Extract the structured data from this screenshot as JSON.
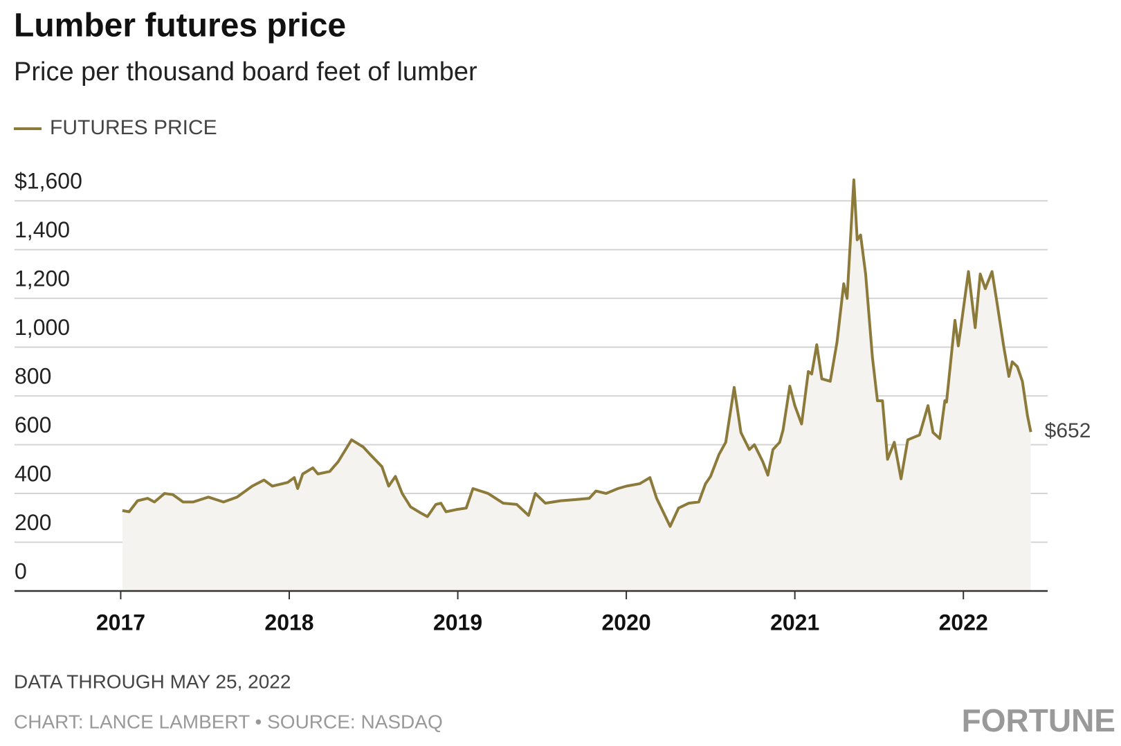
{
  "chart_data": {
    "type": "line",
    "title": "Lumber futures price",
    "subtitle": "Price per thousand board feet of lumber",
    "footnote": "DATA THROUGH MAY 25, 2022",
    "credit": "CHART: LANCE LAMBERT • SOURCE: NASDAQ",
    "logo": "FORTUNE",
    "grid": true,
    "area": true,
    "legend": "top-left",
    "xlim": [
      2016.37,
      2022.5
    ],
    "xticks": [
      2017,
      2018,
      2019,
      2020,
      2021,
      2022
    ],
    "ylim": [
      0,
      1700
    ],
    "yticks": [
      0,
      200,
      400,
      600,
      800,
      {
        "value": 1000,
        "label": "1,000"
      },
      {
        "value": 1200,
        "label": "1,200"
      },
      {
        "value": 1400,
        "label": "1,400"
      },
      {
        "value": 1600,
        "label": "$1,600"
      }
    ],
    "x": [
      2017.01,
      2017.05,
      2017.1,
      2017.16,
      2017.2,
      2017.26,
      2017.31,
      2017.37,
      2017.43,
      2017.52,
      2017.61,
      2017.69,
      2017.78,
      2017.85,
      2017.9,
      2017.99,
      2018.03,
      2018.05,
      2018.08,
      2018.14,
      2018.17,
      2018.24,
      2018.29,
      2018.37,
      2018.44,
      2018.48,
      2018.55,
      2018.59,
      2018.63,
      2018.67,
      2018.72,
      2018.78,
      2018.82,
      2018.87,
      2018.9,
      2018.93,
      2019.0,
      2019.05,
      2019.09,
      2019.18,
      2019.27,
      2019.35,
      2019.42,
      2019.46,
      2019.52,
      2019.61,
      2019.7,
      2019.78,
      2019.82,
      2019.88,
      2019.95,
      2020.0,
      2020.08,
      2020.14,
      2020.18,
      2020.26,
      2020.31,
      2020.37,
      2020.43,
      2020.47,
      2020.5,
      2020.55,
      2020.59,
      2020.64,
      2020.68,
      2020.73,
      2020.76,
      2020.81,
      2020.84,
      2020.87,
      2020.91,
      2020.93,
      2020.97,
      2021.0,
      2021.04,
      2021.08,
      2021.1,
      2021.13,
      2021.16,
      2021.21,
      2021.25,
      2021.29,
      2021.31,
      2021.35,
      2021.37,
      2021.39,
      2021.42,
      2021.46,
      2021.49,
      2021.52,
      2021.55,
      2021.59,
      2021.63,
      2021.67,
      2021.74,
      2021.79,
      2021.82,
      2021.86,
      2021.89,
      2021.9,
      2021.95,
      2021.97,
      2022.03,
      2022.07,
      2022.1,
      2022.13,
      2022.17,
      2022.2,
      2022.24,
      2022.27,
      2022.29,
      2022.32,
      2022.35,
      2022.38,
      2022.4
    ],
    "series": [
      {
        "name": "FUTURES PRICE",
        "color": "#8b7a3a",
        "fill": "#f5f3ef",
        "values": [
          330,
          325,
          370,
          380,
          365,
          400,
          395,
          365,
          365,
          385,
          365,
          385,
          430,
          455,
          430,
          445,
          465,
          420,
          480,
          505,
          480,
          490,
          530,
          620,
          590,
          560,
          510,
          430,
          470,
          400,
          345,
          320,
          305,
          355,
          360,
          325,
          335,
          340,
          420,
          400,
          360,
          355,
          310,
          400,
          360,
          370,
          375,
          380,
          410,
          400,
          420,
          430,
          440,
          465,
          380,
          265,
          340,
          360,
          365,
          440,
          470,
          560,
          610,
          835,
          650,
          580,
          600,
          530,
          475,
          580,
          610,
          660,
          840,
          760,
          685,
          900,
          890,
          1010,
          870,
          860,
          1020,
          1260,
          1200,
          1686,
          1440,
          1460,
          1300,
          960,
          780,
          780,
          540,
          610,
          460,
          620,
          640,
          760,
          650,
          625,
          780,
          775,
          1110,
          1005,
          1310,
          1080,
          1300,
          1240,
          1310,
          1180,
          1000,
          880,
          940,
          920,
          860,
          720,
          652
        ],
        "value_labels": [
          null,
          null,
          null,
          null,
          null,
          null,
          null,
          null,
          null,
          null,
          null,
          null,
          null,
          null,
          null,
          null,
          null,
          null,
          null,
          null,
          null,
          null,
          null,
          null,
          null,
          null,
          null,
          null,
          null,
          null,
          null,
          null,
          null,
          null,
          null,
          null,
          null,
          null,
          null,
          null,
          null,
          null,
          null,
          null,
          null,
          null,
          null,
          null,
          null,
          null,
          null,
          null,
          null,
          null,
          null,
          null,
          null,
          null,
          null,
          null,
          null,
          null,
          null,
          null,
          null,
          null,
          null,
          null,
          null,
          null,
          null,
          null,
          null,
          null,
          null,
          null,
          null,
          null,
          null,
          null,
          null,
          null,
          null,
          null,
          null,
          null,
          null,
          null,
          null,
          null,
          null,
          null,
          null,
          null,
          null,
          null,
          null,
          null,
          null,
          null,
          null,
          null,
          null,
          null,
          null,
          null,
          null,
          null,
          null,
          null,
          null,
          null,
          null,
          null,
          "$652"
        ]
      }
    ]
  }
}
